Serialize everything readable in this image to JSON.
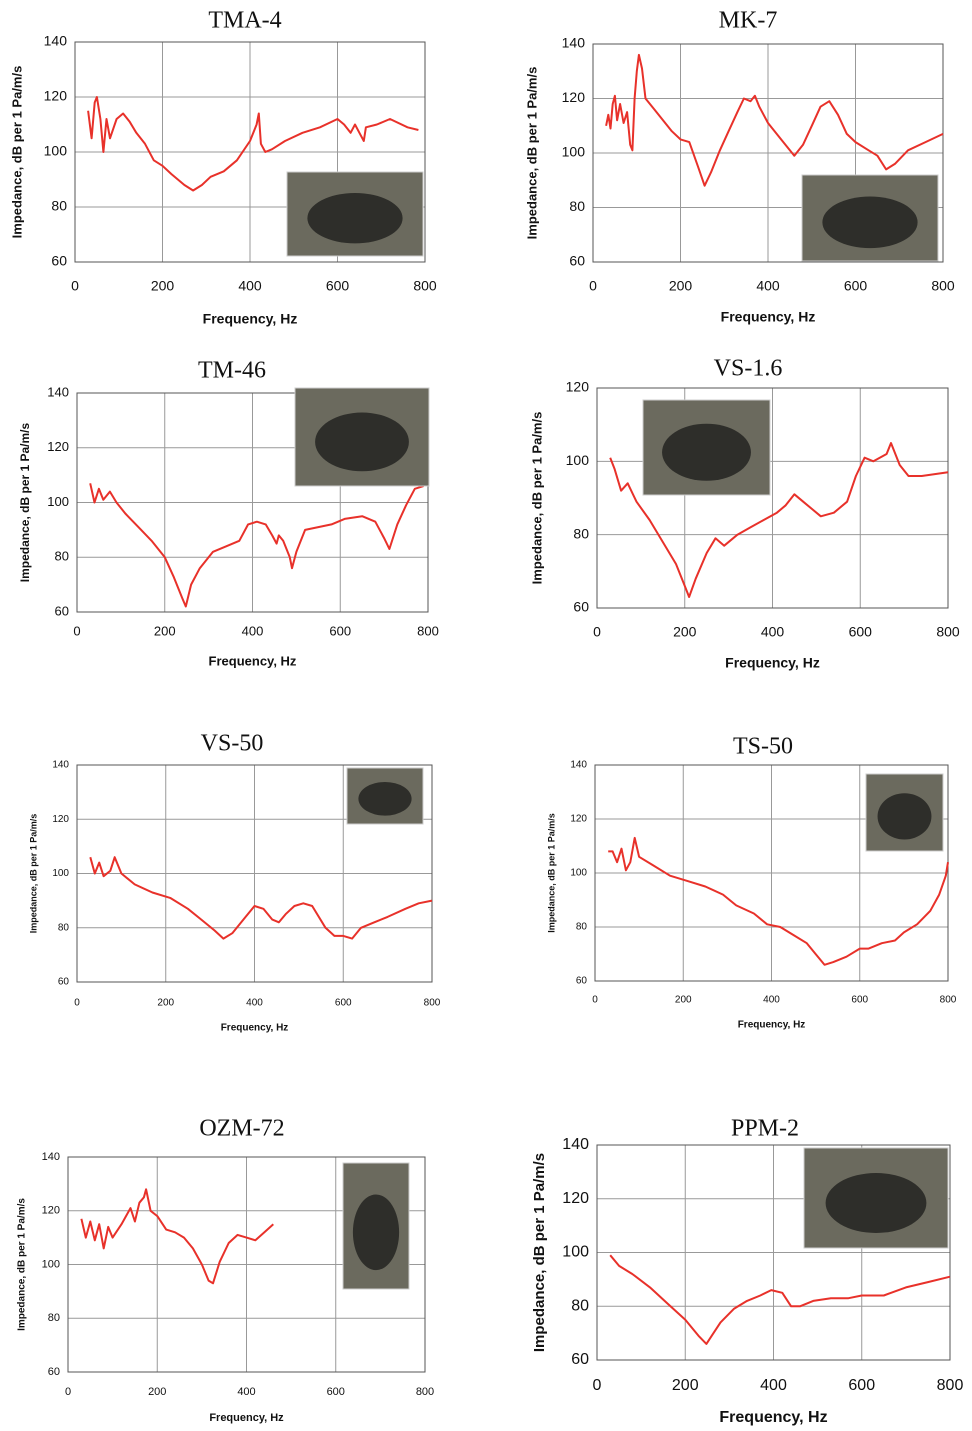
{
  "chart_data": [
    {
      "type": "line",
      "title": "TMA-4",
      "xlabel": "Frequency, Hz",
      "ylabel": "Impedance, dB per 1 Pa/m/s",
      "color": "#e8312a",
      "grid": true,
      "xlim": [
        0,
        800
      ],
      "xticks": [
        0,
        200,
        400,
        600,
        800
      ],
      "ylim": [
        60,
        140
      ],
      "yticks": [
        60,
        80,
        100,
        120,
        140
      ],
      "x": [
        30,
        38,
        45,
        50,
        58,
        65,
        72,
        80,
        95,
        110,
        125,
        140,
        160,
        180,
        200,
        220,
        250,
        270,
        290,
        310,
        340,
        370,
        400,
        415,
        420,
        425,
        435,
        450,
        480,
        520,
        560,
        600,
        615,
        630,
        640,
        650,
        660,
        665,
        690,
        720,
        760,
        785
      ],
      "values": [
        115,
        105,
        118,
        120,
        112,
        100,
        112,
        105,
        112,
        114,
        111,
        107,
        103,
        97,
        95,
        92,
        88,
        86,
        88,
        91,
        93,
        97,
        104,
        110,
        114,
        103,
        100,
        101,
        104,
        107,
        109,
        112,
        110,
        107,
        110,
        107,
        104,
        109,
        110,
        112,
        109,
        108
      ]
    },
    {
      "type": "line",
      "title": "MK-7",
      "xlabel": "Frequency, Hz",
      "ylabel": "Impedance, dB per 1 Pa/m/s",
      "color": "#e8312a",
      "grid": true,
      "xlim": [
        0,
        800
      ],
      "xticks": [
        0,
        200,
        400,
        600,
        800
      ],
      "ylim": [
        60,
        140
      ],
      "yticks": [
        60,
        80,
        100,
        120,
        140
      ],
      "x": [
        30,
        35,
        40,
        45,
        50,
        55,
        62,
        70,
        78,
        85,
        90,
        95,
        100,
        105,
        112,
        120,
        140,
        160,
        180,
        200,
        220,
        240,
        255,
        270,
        290,
        310,
        330,
        345,
        360,
        370,
        380,
        400,
        430,
        460,
        480,
        500,
        520,
        540,
        560,
        580,
        600,
        630,
        650,
        670,
        690,
        720,
        760,
        800
      ],
      "values": [
        110,
        114,
        109,
        118,
        121,
        112,
        118,
        111,
        115,
        103,
        101,
        120,
        130,
        136,
        131,
        120,
        116,
        112,
        108,
        105,
        104,
        95,
        88,
        93,
        101,
        108,
        115,
        120,
        119,
        121,
        117,
        111,
        105,
        99,
        103,
        110,
        117,
        119,
        114,
        107,
        104,
        101,
        99,
        94,
        96,
        101,
        104,
        107
      ]
    },
    {
      "type": "line",
      "title": "TM-46",
      "xlabel": "Frequency, Hz",
      "ylabel": "Impedance, dB per 1 Pa/m/s",
      "color": "#e8312a",
      "grid": true,
      "xlim": [
        0,
        800
      ],
      "xticks": [
        0,
        200,
        400,
        600,
        800
      ],
      "ylim": [
        60,
        140
      ],
      "yticks": [
        60,
        80,
        100,
        120,
        140
      ],
      "x": [
        30,
        40,
        50,
        60,
        75,
        90,
        110,
        140,
        170,
        200,
        220,
        240,
        248,
        260,
        280,
        310,
        340,
        370,
        390,
        410,
        430,
        445,
        455,
        460,
        470,
        485,
        490,
        500,
        520,
        550,
        580,
        610,
        650,
        680,
        700,
        712,
        730,
        750,
        770,
        790
      ],
      "values": [
        107,
        100,
        105,
        101,
        104,
        100,
        96,
        91,
        86,
        80,
        73,
        65,
        62,
        70,
        76,
        82,
        84,
        86,
        92,
        93,
        92,
        88,
        85,
        88,
        86,
        80,
        76,
        82,
        90,
        91,
        92,
        94,
        95,
        93,
        87,
        83,
        92,
        99,
        105,
        106
      ]
    },
    {
      "type": "line",
      "title": "VS-1.6",
      "xlabel": "Frequency, Hz",
      "ylabel": "Impedance, dB per 1 Pa/m/s",
      "color": "#e8312a",
      "grid": true,
      "xlim": [
        0,
        800
      ],
      "xticks": [
        0,
        200,
        400,
        600,
        800
      ],
      "ylim": [
        60,
        120
      ],
      "yticks": [
        60,
        80,
        100,
        120
      ],
      "x": [
        30,
        40,
        55,
        70,
        90,
        120,
        150,
        180,
        200,
        210,
        225,
        250,
        270,
        290,
        320,
        350,
        380,
        410,
        430,
        450,
        470,
        490,
        510,
        540,
        570,
        590,
        610,
        630,
        660,
        670,
        690,
        710,
        740,
        800
      ],
      "values": [
        101,
        98,
        92,
        94,
        89,
        84,
        78,
        72,
        66,
        63,
        68,
        75,
        79,
        77,
        80,
        82,
        84,
        86,
        88,
        91,
        89,
        87,
        85,
        86,
        89,
        96,
        101,
        100,
        102,
        105,
        99,
        96,
        96,
        97
      ]
    },
    {
      "type": "line",
      "title": "VS-50",
      "xlabel": "Frequency, Hz",
      "ylabel": "Impedance, dB per 1 Pa/m/s",
      "color": "#e8312a",
      "grid": true,
      "xlim": [
        0,
        800
      ],
      "xticks": [
        0,
        200,
        400,
        600,
        800
      ],
      "ylim": [
        60,
        140
      ],
      "yticks": [
        60,
        80,
        100,
        120,
        140
      ],
      "x": [
        30,
        40,
        50,
        60,
        75,
        85,
        100,
        130,
        170,
        210,
        250,
        280,
        310,
        330,
        350,
        380,
        400,
        420,
        440,
        455,
        470,
        490,
        510,
        530,
        560,
        580,
        600,
        620,
        640,
        670,
        700,
        740,
        770,
        800
      ],
      "values": [
        106,
        100,
        104,
        99,
        101,
        106,
        100,
        96,
        93,
        91,
        87,
        83,
        79,
        76,
        78,
        84,
        88,
        87,
        83,
        82,
        85,
        88,
        89,
        88,
        80,
        77,
        77,
        76,
        80,
        82,
        84,
        87,
        89,
        90
      ]
    },
    {
      "type": "line",
      "title": "TS-50",
      "xlabel": "Frequency, Hz",
      "ylabel": "Impedance, dB per 1 Pa/m/s",
      "color": "#e8312a",
      "grid": true,
      "xlim": [
        0,
        800
      ],
      "xticks": [
        0,
        200,
        400,
        600,
        800
      ],
      "ylim": [
        60,
        140
      ],
      "yticks": [
        60,
        80,
        100,
        120,
        140
      ],
      "x": [
        30,
        40,
        50,
        60,
        70,
        80,
        90,
        100,
        130,
        170,
        210,
        250,
        290,
        320,
        360,
        390,
        420,
        450,
        480,
        500,
        520,
        540,
        570,
        600,
        620,
        650,
        680,
        700,
        730,
        760,
        780,
        795,
        800
      ],
      "values": [
        108,
        108,
        104,
        109,
        101,
        104,
        113,
        106,
        103,
        99,
        97,
        95,
        92,
        88,
        85,
        81,
        80,
        77,
        74,
        70,
        66,
        67,
        69,
        72,
        72,
        74,
        75,
        78,
        81,
        86,
        92,
        99,
        104
      ]
    },
    {
      "type": "line",
      "title": "OZM-72",
      "xlabel": "Frequency, Hz",
      "ylabel": "Impedance, dB per 1 Pa/m/s",
      "color": "#e8312a",
      "grid": true,
      "xlim": [
        0,
        800
      ],
      "xticks": [
        0,
        200,
        400,
        600,
        800
      ],
      "ylim": [
        60,
        140
      ],
      "yticks": [
        60,
        80,
        100,
        120,
        140
      ],
      "x": [
        30,
        40,
        50,
        60,
        70,
        80,
        90,
        100,
        120,
        140,
        150,
        160,
        170,
        175,
        185,
        200,
        220,
        240,
        260,
        280,
        300,
        315,
        325,
        340,
        360,
        380,
        400,
        420,
        440,
        460
      ],
      "values": [
        117,
        110,
        116,
        109,
        115,
        106,
        114,
        110,
        115,
        121,
        116,
        123,
        125,
        128,
        120,
        118,
        113,
        112,
        110,
        106,
        100,
        94,
        93,
        101,
        108,
        111,
        110,
        109,
        112,
        115
      ]
    },
    {
      "type": "line",
      "title": "PPM-2",
      "xlabel": "Frequency, Hz",
      "ylabel": "Impedance, dB per 1 Pa/m/s",
      "color": "#e8312a",
      "grid": true,
      "xlim": [
        0,
        800
      ],
      "xticks": [
        0,
        200,
        400,
        600,
        800
      ],
      "ylim": [
        60,
        140
      ],
      "yticks": [
        60,
        80,
        100,
        120,
        140
      ],
      "x": [
        30,
        50,
        80,
        120,
        160,
        200,
        230,
        248,
        260,
        280,
        310,
        340,
        370,
        395,
        420,
        440,
        460,
        490,
        530,
        570,
        600,
        650,
        700,
        750,
        800
      ],
      "values": [
        99,
        95,
        92,
        87,
        81,
        75,
        69,
        66,
        69,
        74,
        79,
        82,
        84,
        86,
        85,
        80,
        80,
        82,
        83,
        83,
        84,
        84,
        87,
        89,
        91
      ]
    }
  ]
}
